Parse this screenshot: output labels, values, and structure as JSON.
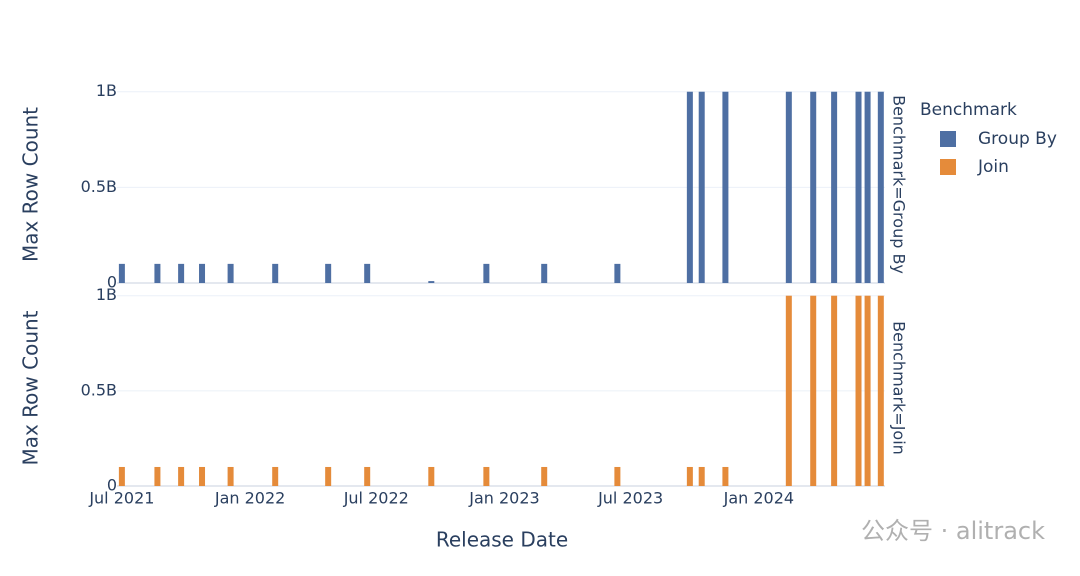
{
  "chart_data": {
    "type": "bar",
    "x_label": "Release Date",
    "y_label": "Max Row Count",
    "legend_title": "Benchmark",
    "facets": [
      "Benchmark=Group By",
      "Benchmark=Join"
    ],
    "x": [
      "2021-07-01",
      "2021-08-21",
      "2021-09-24",
      "2021-10-24",
      "2021-12-04",
      "2022-02-06",
      "2022-04-23",
      "2022-06-18",
      "2022-09-18",
      "2022-12-06",
      "2023-02-27",
      "2023-06-12",
      "2023-09-24",
      "2023-10-11",
      "2023-11-14",
      "2024-02-13",
      "2024-03-19",
      "2024-04-18",
      "2024-05-23",
      "2024-06-05",
      "2024-06-24"
    ],
    "series": [
      {
        "name": "Group By",
        "color": "#4e6fa3",
        "values": [
          100000000,
          100000000,
          100000000,
          100000000,
          100000000,
          100000000,
          100000000,
          100000000,
          10000000,
          100000000,
          100000000,
          100000000,
          1000000000,
          1000000000,
          1000000000,
          1000000000,
          1000000000,
          1000000000,
          1000000000,
          1000000000,
          1000000000
        ]
      },
      {
        "name": "Join",
        "color": "#e58b3a",
        "values": [
          100000000,
          100000000,
          100000000,
          100000000,
          100000000,
          100000000,
          100000000,
          100000000,
          100000000,
          100000000,
          100000000,
          100000000,
          100000000,
          100000000,
          100000000,
          1000000000,
          1000000000,
          1000000000,
          1000000000,
          1000000000,
          1000000000
        ]
      }
    ],
    "xlim": [
      "2021-06-24",
      "2024-06-30"
    ],
    "xticks": [
      {
        "value": "2021-07-01",
        "label": "Jul 2021"
      },
      {
        "value": "2022-01-01",
        "label": "Jan 2022"
      },
      {
        "value": "2022-07-01",
        "label": "Jul 2022"
      },
      {
        "value": "2023-01-01",
        "label": "Jan 2023"
      },
      {
        "value": "2023-07-01",
        "label": "Jul 2023"
      },
      {
        "value": "2024-01-01",
        "label": "Jan 2024"
      }
    ],
    "ylim": [
      0,
      1030000000
    ],
    "yticks": [
      0,
      {
        "value": 500000000,
        "label": "0.5B"
      },
      {
        "value": 1000000000,
        "label": "1B"
      }
    ],
    "grid": true
  },
  "watermark": "公众号 · alitrack"
}
